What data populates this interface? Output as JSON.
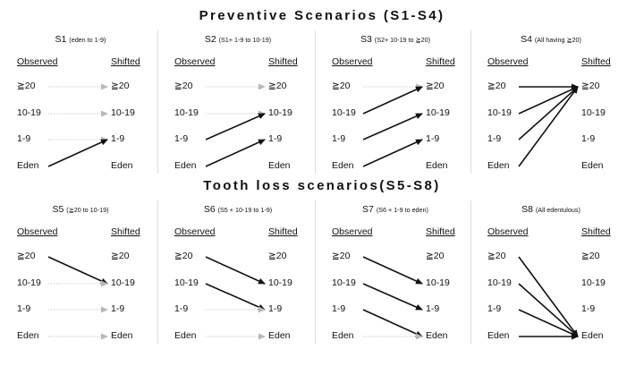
{
  "sections": [
    {
      "title": "Preventive Scenarios (S1-S4)",
      "panels": [
        {
          "name": "S1",
          "note": "eden to 1-9",
          "observed_label": "Observed",
          "shifted_label": "Shifted",
          "levels": [
            "≧20",
            "10-19",
            "1-9",
            "Eden"
          ],
          "shifts": [
            {
              "from": "Eden",
              "to": "1-9"
            }
          ]
        },
        {
          "name": "S2",
          "note": "S1+ 1-9 to 10-19",
          "observed_label": "Observed",
          "shifted_label": "Shifted",
          "levels": [
            "≧20",
            "10-19",
            "1-9",
            "Eden"
          ],
          "shifts": [
            {
              "from": "1-9",
              "to": "10-19"
            },
            {
              "from": "Eden",
              "to": "1-9"
            }
          ]
        },
        {
          "name": "S3",
          "note": "S2+ 10-19 to ≧20",
          "observed_label": "Observed",
          "shifted_label": "Shifted",
          "levels": [
            "≧20",
            "10-19",
            "1-9",
            "Eden"
          ],
          "shifts": [
            {
              "from": "10-19",
              "to": "≧20"
            },
            {
              "from": "1-9",
              "to": "10-19"
            },
            {
              "from": "Eden",
              "to": "1-9"
            }
          ]
        },
        {
          "name": "S4",
          "note": "All having ≧20",
          "observed_label": "Observed",
          "shifted_label": "Shifted",
          "levels": [
            "≧20",
            "10-19",
            "1-9",
            "Eden"
          ],
          "shifts": [
            {
              "from": "≧20",
              "to": "≧20"
            },
            {
              "from": "10-19",
              "to": "≧20"
            },
            {
              "from": "1-9",
              "to": "≧20"
            },
            {
              "from": "Eden",
              "to": "≧20"
            }
          ]
        }
      ]
    },
    {
      "title": "Tooth loss scenarios(S5-S8)",
      "panels": [
        {
          "name": "S5",
          "note": "≧20 to 10-19",
          "observed_label": "Observed",
          "shifted_label": "Shifted",
          "levels": [
            "≧20",
            "10-19",
            "1-9",
            "Eden"
          ],
          "shifts": [
            {
              "from": "≧20",
              "to": "10-19"
            }
          ]
        },
        {
          "name": "S6",
          "note": "S5 + 10-19 to 1-9",
          "observed_label": "Observed",
          "shifted_label": "Shifted",
          "levels": [
            "≧20",
            "10-19",
            "1-9",
            "Eden"
          ],
          "shifts": [
            {
              "from": "≧20",
              "to": "10-19"
            },
            {
              "from": "10-19",
              "to": "1-9"
            }
          ]
        },
        {
          "name": "S7",
          "note": "S6 + 1-9 to eden",
          "observed_label": "Observed",
          "shifted_label": "Shifted",
          "levels": [
            "≧20",
            "10-19",
            "1-9",
            "Eden"
          ],
          "shifts": [
            {
              "from": "≧20",
              "to": "10-19"
            },
            {
              "from": "10-19",
              "to": "1-9"
            },
            {
              "from": "1-9",
              "to": "Eden"
            }
          ]
        },
        {
          "name": "S8",
          "note": "All edentulous",
          "observed_label": "Observed",
          "shifted_label": "Shifted",
          "levels": [
            "≧20",
            "10-19",
            "1-9",
            "Eden"
          ],
          "shifts": [
            {
              "from": "≧20",
              "to": "Eden"
            },
            {
              "from": "10-19",
              "to": "Eden"
            },
            {
              "from": "1-9",
              "to": "Eden"
            },
            {
              "from": "Eden",
              "to": "Eden"
            }
          ]
        }
      ]
    }
  ],
  "colors": {
    "shift_arrow": "#111111",
    "unchanged_arrow": "#b8b8b8",
    "divider": "#dcdcdc"
  }
}
